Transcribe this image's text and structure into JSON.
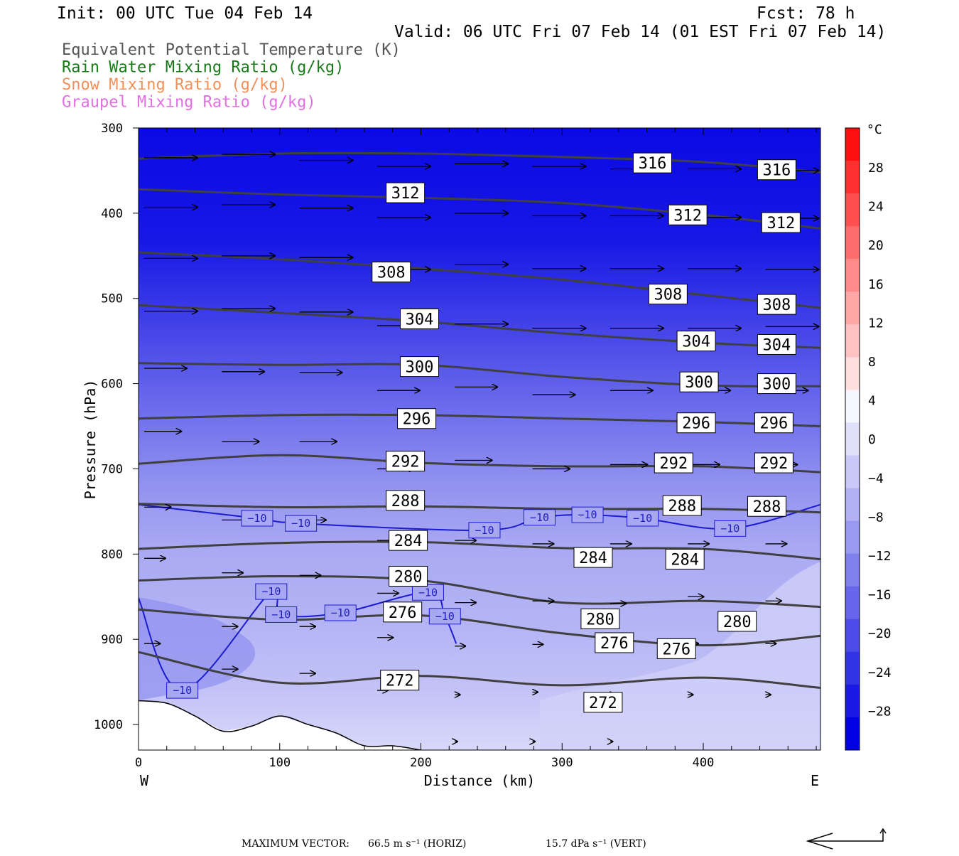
{
  "header": {
    "init": "Init: 00 UTC Tue 04 Feb 14",
    "fcst": "Fcst:   78 h",
    "valid": "Valid: 06 UTC Fri 07 Feb 14 (01 EST Fri 07 Feb 14)"
  },
  "legend": [
    {
      "text": "Equivalent Potential Temperature (K)",
      "color": "#555555"
    },
    {
      "text": "Rain Water Mixing Ratio (g/kg)",
      "color": "#1a7a1a"
    },
    {
      "text": "Snow Mixing Ratio (g/kg)",
      "color": "#f0905a"
    },
    {
      "text": "Graupel Mixing Ratio (g/kg)",
      "color": "#e070e0"
    }
  ],
  "axes": {
    "ylabel": "Pressure (hPa)",
    "xlabel": "Distance (km)",
    "west": "W",
    "east": "E"
  },
  "colorbar": {
    "unit": "°C",
    "ticks": [
      "28",
      "24",
      "20",
      "16",
      "12",
      "8",
      "4",
      "0",
      "−4",
      "−8",
      "−12",
      "−16",
      "−20",
      "−24",
      "−28"
    ],
    "colors": [
      "#ff1010",
      "#ff3030",
      "#ff5050",
      "#ff6e6e",
      "#ff8a8a",
      "#ffa6a6",
      "#ffc2c2",
      "#ffdede",
      "#f6f6ff",
      "#e0e0fb",
      "#c9c9f7",
      "#b1b1f4",
      "#9999f1",
      "#8080ee",
      "#6666eb",
      "#4c4ce8",
      "#3333e6",
      "#1a1ae4",
      "#0000e2"
    ]
  },
  "footer": {
    "max_label": "MAXIMUM VECTOR:",
    "horiz": "66.5 m s⁻¹ (HORIZ)",
    "vert": "15.7 dPa s⁻¹ (VERT)"
  },
  "chart_data": {
    "type": "cross-section contour",
    "x": {
      "label": "Distance (km)",
      "min": 0,
      "max": 483,
      "ticks": [
        0,
        100,
        200,
        300,
        400
      ]
    },
    "y": {
      "label": "Pressure (hPa)",
      "min": 300,
      "max": 1030,
      "ticks": [
        300,
        400,
        500,
        600,
        700,
        800,
        900,
        1000
      ]
    },
    "theta_e_lines": [
      {
        "level": 316,
        "points": [
          [
            0,
            336
          ],
          [
            100,
            330
          ],
          [
            200,
            330
          ],
          [
            300,
            334
          ],
          [
            400,
            340
          ],
          [
            483,
            352
          ]
        ]
      },
      {
        "level": 312,
        "points": [
          [
            0,
            372
          ],
          [
            100,
            378
          ],
          [
            200,
            382
          ],
          [
            300,
            388
          ],
          [
            400,
            402
          ],
          [
            483,
            418
          ]
        ]
      },
      {
        "level": 308,
        "points": [
          [
            0,
            446
          ],
          [
            100,
            454
          ],
          [
            200,
            465
          ],
          [
            300,
            478
          ],
          [
            400,
            496
          ],
          [
            483,
            511
          ]
        ]
      },
      {
        "level": 304,
        "points": [
          [
            0,
            508
          ],
          [
            100,
            517
          ],
          [
            200,
            527
          ],
          [
            300,
            541
          ],
          [
            400,
            552
          ],
          [
            483,
            558
          ]
        ]
      },
      {
        "level": 300,
        "points": [
          [
            0,
            576
          ],
          [
            100,
            578
          ],
          [
            200,
            578
          ],
          [
            300,
            592
          ],
          [
            400,
            602
          ],
          [
            483,
            603
          ]
        ]
      },
      {
        "level": 296,
        "points": [
          [
            0,
            641
          ],
          [
            100,
            637
          ],
          [
            200,
            637
          ],
          [
            300,
            641
          ],
          [
            400,
            645
          ],
          [
            483,
            650
          ]
        ]
      },
      {
        "level": 292,
        "points": [
          [
            0,
            694
          ],
          [
            100,
            684
          ],
          [
            200,
            693
          ],
          [
            300,
            697
          ],
          [
            400,
            697
          ],
          [
            483,
            704
          ]
        ]
      },
      {
        "level": 288,
        "points": [
          [
            0,
            741
          ],
          [
            100,
            745
          ],
          [
            200,
            744
          ],
          [
            300,
            747
          ],
          [
            400,
            747
          ],
          [
            483,
            751
          ]
        ]
      },
      {
        "level": 284,
        "points": [
          [
            0,
            794
          ],
          [
            100,
            787
          ],
          [
            200,
            786
          ],
          [
            300,
            793
          ],
          [
            400,
            794
          ],
          [
            483,
            806
          ]
        ]
      },
      {
        "level": 280,
        "points": [
          [
            0,
            831
          ],
          [
            100,
            826
          ],
          [
            200,
            831
          ],
          [
            300,
            857
          ],
          [
            400,
            855
          ],
          [
            483,
            862
          ]
        ]
      },
      {
        "level": 276,
        "points": [
          [
            0,
            865
          ],
          [
            100,
            877
          ],
          [
            200,
            872
          ],
          [
            300,
            893
          ],
          [
            400,
            907
          ],
          [
            483,
            896
          ]
        ]
      },
      {
        "level": 272,
        "points": [
          [
            0,
            915
          ],
          [
            100,
            951
          ],
          [
            200,
            943
          ],
          [
            300,
            954
          ],
          [
            400,
            945
          ],
          [
            483,
            957
          ]
        ]
      }
    ],
    "contour_labels": [
      {
        "text": "316",
        "x": 364,
        "p": 341
      },
      {
        "text": "316",
        "x": 452,
        "p": 349
      },
      {
        "text": "312",
        "x": 189,
        "p": 376
      },
      {
        "text": "312",
        "x": 389,
        "p": 402
      },
      {
        "text": "312",
        "x": 455,
        "p": 411
      },
      {
        "text": "308",
        "x": 179,
        "p": 469
      },
      {
        "text": "308",
        "x": 375,
        "p": 495
      },
      {
        "text": "308",
        "x": 452,
        "p": 507
      },
      {
        "text": "304",
        "x": 199,
        "p": 524
      },
      {
        "text": "304",
        "x": 395,
        "p": 550
      },
      {
        "text": "304",
        "x": 452,
        "p": 554
      },
      {
        "text": "300",
        "x": 199,
        "p": 580
      },
      {
        "text": "300",
        "x": 397,
        "p": 598
      },
      {
        "text": "300",
        "x": 452,
        "p": 600
      },
      {
        "text": "296",
        "x": 197,
        "p": 641
      },
      {
        "text": "296",
        "x": 395,
        "p": 646
      },
      {
        "text": "296",
        "x": 450,
        "p": 646
      },
      {
        "text": "292",
        "x": 189,
        "p": 691
      },
      {
        "text": "292",
        "x": 379,
        "p": 693
      },
      {
        "text": "292",
        "x": 450,
        "p": 693
      },
      {
        "text": "288",
        "x": 189,
        "p": 737
      },
      {
        "text": "288",
        "x": 385,
        "p": 743
      },
      {
        "text": "288",
        "x": 445,
        "p": 744
      },
      {
        "text": "284",
        "x": 191,
        "p": 784
      },
      {
        "text": "284",
        "x": 322,
        "p": 804
      },
      {
        "text": "284",
        "x": 387,
        "p": 806
      },
      {
        "text": "280",
        "x": 191,
        "p": 826
      },
      {
        "text": "280",
        "x": 327,
        "p": 876
      },
      {
        "text": "280",
        "x": 424,
        "p": 879
      },
      {
        "text": "276",
        "x": 187,
        "p": 868
      },
      {
        "text": "276",
        "x": 337,
        "p": 904
      },
      {
        "text": "276",
        "x": 381,
        "p": 911
      },
      {
        "text": "272",
        "x": 185,
        "p": 948
      },
      {
        "text": "272",
        "x": 329,
        "p": 974
      }
    ],
    "temperature_contour_labels": [
      {
        "text": "−10",
        "x": 84,
        "p": 758
      },
      {
        "text": "−10",
        "x": 115,
        "p": 764
      },
      {
        "text": "−10",
        "x": 245,
        "p": 772
      },
      {
        "text": "−10",
        "x": 284,
        "p": 757
      },
      {
        "text": "−10",
        "x": 318,
        "p": 754
      },
      {
        "text": "−10",
        "x": 357,
        "p": 758
      },
      {
        "text": "−10",
        "x": 419,
        "p": 770
      },
      {
        "text": "−10",
        "x": 94,
        "p": 844
      },
      {
        "text": "−10",
        "x": 101,
        "p": 871
      },
      {
        "text": "−10",
        "x": 143,
        "p": 869
      },
      {
        "text": "−10",
        "x": 205,
        "p": 845
      },
      {
        "text": "−10",
        "x": 217,
        "p": 873
      },
      {
        "text": "−10",
        "x": 31,
        "p": 960
      }
    ],
    "temperature_fill_levels_c": [
      -30,
      -28,
      -26,
      -24,
      -22,
      -20,
      -18,
      -16,
      -14,
      -12,
      -10,
      -8,
      -6,
      -4,
      -2,
      0
    ],
    "wind_vectors": [
      {
        "x": 0,
        "p": 335,
        "u": 1.0,
        "w": 0.0
      },
      {
        "x": 55,
        "p": 331,
        "u": 1.0,
        "w": 0.0
      },
      {
        "x": 110,
        "p": 338,
        "u": 1.0,
        "w": 0.0
      },
      {
        "x": 165,
        "p": 345,
        "u": 1.0,
        "w": 0.0
      },
      {
        "x": 220,
        "p": 342,
        "u": 1.0,
        "w": 0.0
      },
      {
        "x": 275,
        "p": 345,
        "u": 1.0,
        "w": 0.0
      },
      {
        "x": 330,
        "p": 348,
        "u": 1.0,
        "w": 0.0
      },
      {
        "x": 385,
        "p": 348,
        "u": 1.0,
        "w": 0.0
      },
      {
        "x": 440,
        "p": 350,
        "u": 1.0,
        "w": 0.0
      },
      {
        "x": 0,
        "p": 393,
        "u": 1.0,
        "w": 0.0
      },
      {
        "x": 55,
        "p": 390,
        "u": 1.0,
        "w": 0.0
      },
      {
        "x": 110,
        "p": 394,
        "u": 1.0,
        "w": 0.0
      },
      {
        "x": 165,
        "p": 405,
        "u": 1.0,
        "w": 0.0
      },
      {
        "x": 220,
        "p": 400,
        "u": 1.0,
        "w": 0.0
      },
      {
        "x": 275,
        "p": 403,
        "u": 1.0,
        "w": 0.0
      },
      {
        "x": 330,
        "p": 403,
        "u": 1.0,
        "w": 0.0
      },
      {
        "x": 385,
        "p": 405,
        "u": 1.0,
        "w": 0.0
      },
      {
        "x": 440,
        "p": 406,
        "u": 1.0,
        "w": 0.0
      },
      {
        "x": 0,
        "p": 453,
        "u": 1.0,
        "w": 0.0
      },
      {
        "x": 55,
        "p": 450,
        "u": 1.0,
        "w": 0.0
      },
      {
        "x": 110,
        "p": 452,
        "u": 1.0,
        "w": 0.0
      },
      {
        "x": 165,
        "p": 466,
        "u": 1.0,
        "w": 0.0
      },
      {
        "x": 220,
        "p": 460,
        "u": 1.0,
        "w": 0.0
      },
      {
        "x": 275,
        "p": 465,
        "u": 1.0,
        "w": 0.0
      },
      {
        "x": 330,
        "p": 465,
        "u": 1.0,
        "w": 0.0
      },
      {
        "x": 385,
        "p": 465,
        "u": 1.0,
        "w": 0.0
      },
      {
        "x": 440,
        "p": 466,
        "u": 1.0,
        "w": 0.0
      },
      {
        "x": 0,
        "p": 515,
        "u": 1.0,
        "w": 0.0
      },
      {
        "x": 55,
        "p": 512,
        "u": 1.0,
        "w": 0.0
      },
      {
        "x": 110,
        "p": 516,
        "u": 1.0,
        "w": 0.0
      },
      {
        "x": 165,
        "p": 532,
        "u": 0.8,
        "w": 0.0
      },
      {
        "x": 220,
        "p": 530,
        "u": 1.0,
        "w": 0.0
      },
      {
        "x": 275,
        "p": 535,
        "u": 1.0,
        "w": 0.0
      },
      {
        "x": 330,
        "p": 535,
        "u": 1.0,
        "w": 0.0
      },
      {
        "x": 385,
        "p": 535,
        "u": 1.0,
        "w": 0.0
      },
      {
        "x": 440,
        "p": 533,
        "u": 1.0,
        "w": 0.0
      },
      {
        "x": 0,
        "p": 582,
        "u": 0.8,
        "w": 0.0
      },
      {
        "x": 55,
        "p": 586,
        "u": 0.8,
        "w": 0.0
      },
      {
        "x": 110,
        "p": 587,
        "u": 0.8,
        "w": 0.0
      },
      {
        "x": 165,
        "p": 608,
        "u": 0.8,
        "w": 0.0
      },
      {
        "x": 220,
        "p": 604,
        "u": 0.8,
        "w": 0.0
      },
      {
        "x": 275,
        "p": 613,
        "u": 0.8,
        "w": 0.0
      },
      {
        "x": 330,
        "p": 608,
        "u": 0.8,
        "w": 0.0
      },
      {
        "x": 385,
        "p": 608,
        "u": 0.8,
        "w": 0.0
      },
      {
        "x": 440,
        "p": 608,
        "u": 0.8,
        "w": 0.0
      },
      {
        "x": 0,
        "p": 656,
        "u": 0.7,
        "w": 0.0
      },
      {
        "x": 55,
        "p": 668,
        "u": 0.7,
        "w": 0.0
      },
      {
        "x": 110,
        "p": 668,
        "u": 0.7,
        "w": 0.0
      },
      {
        "x": 165,
        "p": 700,
        "u": 0.7,
        "w": 0.0
      },
      {
        "x": 220,
        "p": 690,
        "u": 0.7,
        "w": 0.0
      },
      {
        "x": 275,
        "p": 700,
        "u": 0.7,
        "w": 0.0
      },
      {
        "x": 330,
        "p": 695,
        "u": 0.7,
        "w": 0.0
      },
      {
        "x": 385,
        "p": 695,
        "u": 0.6,
        "w": 0.0
      },
      {
        "x": 440,
        "p": 695,
        "u": 0.6,
        "w": 0.0
      },
      {
        "x": 0,
        "p": 745,
        "u": 0.5,
        "w": 0.0
      },
      {
        "x": 55,
        "p": 760,
        "u": 0.5,
        "w": 0.0
      },
      {
        "x": 110,
        "p": 760,
        "u": 0.5,
        "w": 0.0
      },
      {
        "x": 165,
        "p": 784,
        "u": 0.5,
        "w": 0.0
      },
      {
        "x": 220,
        "p": 784,
        "u": 0.4,
        "w": 0.0
      },
      {
        "x": 275,
        "p": 788,
        "u": 0.4,
        "w": 0.0
      },
      {
        "x": 330,
        "p": 788,
        "u": 0.4,
        "w": 0.0
      },
      {
        "x": 385,
        "p": 788,
        "u": 0.4,
        "w": 0.0
      },
      {
        "x": 440,
        "p": 788,
        "u": 0.4,
        "w": 0.0
      },
      {
        "x": 0,
        "p": 805,
        "u": 0.4,
        "w": 0.0
      },
      {
        "x": 55,
        "p": 822,
        "u": 0.4,
        "w": 0.0
      },
      {
        "x": 110,
        "p": 825,
        "u": 0.4,
        "w": 0.0
      },
      {
        "x": 165,
        "p": 846,
        "u": 0.4,
        "w": 0.0
      },
      {
        "x": 220,
        "p": 857,
        "u": 0.4,
        "w": 0.0
      },
      {
        "x": 275,
        "p": 855,
        "u": 0.4,
        "w": 0.0
      },
      {
        "x": 330,
        "p": 858,
        "u": 0.3,
        "w": 0.0
      },
      {
        "x": 385,
        "p": 850,
        "u": 0.3,
        "w": 0.0
      },
      {
        "x": 440,
        "p": 855,
        "u": 0.3,
        "w": 0.0
      },
      {
        "x": 0,
        "p": 905,
        "u": 0.3,
        "w": 0.0
      },
      {
        "x": 55,
        "p": 885,
        "u": 0.3,
        "w": 0.0
      },
      {
        "x": 110,
        "p": 885,
        "u": 0.3,
        "w": 0.0
      },
      {
        "x": 165,
        "p": 898,
        "u": 0.3,
        "w": 0.0
      },
      {
        "x": 220,
        "p": 908,
        "u": 0.2,
        "w": 0.0
      },
      {
        "x": 275,
        "p": 906,
        "u": 0.2,
        "w": 0.0
      },
      {
        "x": 330,
        "p": 905,
        "u": 0.2,
        "w": 0.0
      },
      {
        "x": 385,
        "p": 905,
        "u": 0.2,
        "w": 0.0
      },
      {
        "x": 440,
        "p": 905,
        "u": 0.2,
        "w": 0.0
      },
      {
        "x": 55,
        "p": 935,
        "u": 0.3,
        "w": 0.0
      },
      {
        "x": 110,
        "p": 940,
        "u": 0.3,
        "w": 0.0
      },
      {
        "x": 165,
        "p": 960,
        "u": 0.2,
        "w": 0.0
      },
      {
        "x": 220,
        "p": 965,
        "u": 0.1,
        "w": 0.0
      },
      {
        "x": 275,
        "p": 962,
        "u": 0.1,
        "w": 0.0
      },
      {
        "x": 330,
        "p": 965,
        "u": 0.1,
        "w": 0.0
      },
      {
        "x": 385,
        "p": 965,
        "u": 0.1,
        "w": 0.0
      },
      {
        "x": 440,
        "p": 965,
        "u": 0.1,
        "w": 0.0
      },
      {
        "x": 220,
        "p": 1020,
        "u": 0.05,
        "w": 0.0
      },
      {
        "x": 275,
        "p": 1020,
        "u": 0.05,
        "w": 0.0
      },
      {
        "x": 330,
        "p": 1020,
        "u": 0.05,
        "w": 0.0
      }
    ],
    "terrain_pressure": [
      [
        0,
        972
      ],
      [
        20,
        975
      ],
      [
        40,
        990
      ],
      [
        60,
        1008
      ],
      [
        80,
        1002
      ],
      [
        100,
        990
      ],
      [
        120,
        1000
      ],
      [
        140,
        1010
      ],
      [
        160,
        1025
      ],
      [
        180,
        1025
      ],
      [
        200,
        1030
      ],
      [
        483,
        1030
      ]
    ]
  }
}
